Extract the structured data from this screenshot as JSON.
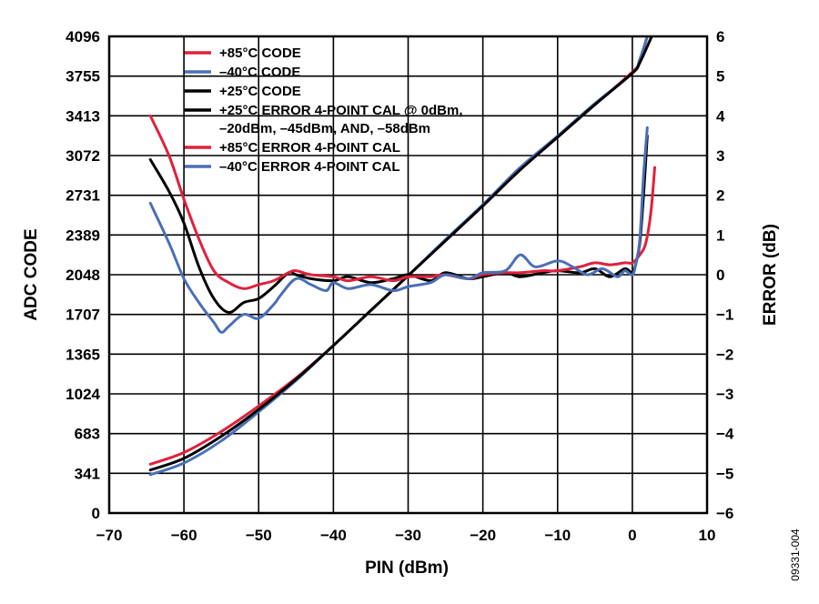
{
  "figure_id": "09331-004",
  "chart_data": {
    "type": "line",
    "title": "",
    "xlabel": "PIN (dBm)",
    "ylabel_left": "ADC CODE",
    "ylabel_right": "ERROR (dB)",
    "xlim": [
      -70,
      10
    ],
    "ylim_left": [
      0,
      4096
    ],
    "ylim_right": [
      -6,
      6
    ],
    "x_ticks": [
      "−70",
      "−60",
      "−50",
      "−40",
      "−30",
      "−20",
      "−10",
      "0",
      "10"
    ],
    "y_ticks_left": [
      "0",
      "341",
      "683",
      "1024",
      "1365",
      "1707",
      "2048",
      "2389",
      "2731",
      "3072",
      "3413",
      "3755",
      "4096"
    ],
    "y_ticks_right": [
      "−6",
      "−5",
      "−4",
      "−3",
      "−2",
      "−1",
      "0",
      "1",
      "2",
      "3",
      "4",
      "5",
      "6"
    ],
    "grid": true,
    "legend_position": "top-left",
    "legend": [
      {
        "label": "+85°C CODE",
        "color": "#e0203c"
      },
      {
        "label": "–40°C CODE",
        "color": "#4a6fb5"
      },
      {
        "label": "+25°C CODE",
        "color": "#000000"
      },
      {
        "label": "+25°C ERROR 4-POINT CAL @ 0dBm,",
        "label2": "–20dBm, –45dBm, AND, –58dBm",
        "color": "#000000"
      },
      {
        "label": "+85°C ERROR 4-POINT CAL",
        "color": "#e0203c"
      },
      {
        "label": "–40°C ERROR 4-POINT CAL",
        "color": "#4a6fb5"
      }
    ],
    "series": [
      {
        "name": "+85°C CODE",
        "axis": "left",
        "color": "#e0203c",
        "x": [
          -64.5,
          -60,
          -55,
          -50,
          -45,
          -40,
          -35,
          -30,
          -25,
          -20,
          -15,
          -10,
          -5,
          0,
          1,
          2
        ],
        "y": [
          420,
          520,
          700,
          920,
          1160,
          1440,
          1740,
          2040,
          2340,
          2640,
          2950,
          3230,
          3510,
          3790,
          3880,
          4096
        ]
      },
      {
        "name": "–40°C CODE",
        "axis": "left",
        "color": "#4a6fb5",
        "x": [
          -64.5,
          -60,
          -55,
          -50,
          -45,
          -40,
          -35,
          -30,
          -25,
          -20,
          -15,
          -10,
          -5,
          0,
          1,
          2
        ],
        "y": [
          330,
          430,
          620,
          870,
          1140,
          1440,
          1740,
          2040,
          2350,
          2650,
          2970,
          3240,
          3520,
          3780,
          3900,
          4096
        ]
      },
      {
        "name": "+25°C CODE",
        "axis": "left",
        "color": "#000000",
        "x": [
          -64.5,
          -60,
          -55,
          -50,
          -45,
          -40,
          -35,
          -30,
          -25,
          -20,
          -15,
          -10,
          -5,
          0,
          1,
          2.6
        ],
        "y": [
          370,
          470,
          660,
          890,
          1150,
          1440,
          1740,
          2040,
          2340,
          2640,
          2950,
          3230,
          3510,
          3780,
          3870,
          4096
        ]
      },
      {
        "name": "+25°C ERROR 4-POINT CAL @ 0dBm, –20dBm, –45dBm, AND, –58dBm",
        "axis": "right",
        "color": "#000000",
        "x": [
          -64.5,
          -62,
          -60,
          -58,
          -56,
          -54,
          -52,
          -50,
          -48,
          -46,
          -45,
          -43,
          -40,
          -38,
          -35,
          -32,
          -30,
          -27,
          -25,
          -22,
          -20,
          -17,
          -15,
          -12,
          -10,
          -7,
          -5,
          -3,
          -1,
          0,
          0.5,
          1,
          1.5,
          2
        ],
        "y": [
          2.9,
          2.1,
          1.3,
          0.2,
          -0.6,
          -0.95,
          -0.7,
          -0.6,
          -0.3,
          0.05,
          0.0,
          -0.1,
          -0.15,
          -0.05,
          -0.2,
          -0.1,
          0.0,
          -0.15,
          0.05,
          -0.1,
          -0.05,
          0.05,
          -0.05,
          0.05,
          0.1,
          0.05,
          0.15,
          -0.05,
          0.15,
          0.05,
          0.3,
          0.8,
          2.0,
          3.5
        ]
      },
      {
        "name": "+85°C ERROR 4-POINT CAL",
        "axis": "right",
        "color": "#e0203c",
        "x": [
          -64.5,
          -62,
          -60,
          -58,
          -56,
          -54,
          -52,
          -50,
          -48,
          -46,
          -45,
          -43,
          -40,
          -38,
          -35,
          -32,
          -30,
          -27,
          -25,
          -22,
          -20,
          -17,
          -15,
          -12,
          -10,
          -7,
          -5,
          -3,
          -1,
          0,
          1,
          1.8,
          2.5,
          3
        ],
        "y": [
          4.0,
          3.0,
          1.9,
          0.9,
          0.1,
          -0.2,
          -0.35,
          -0.25,
          -0.15,
          0.05,
          0.1,
          0.0,
          -0.05,
          -0.15,
          -0.05,
          -0.15,
          -0.05,
          -0.05,
          0.0,
          -0.1,
          0.0,
          0.05,
          0.05,
          0.1,
          0.1,
          0.2,
          0.3,
          0.25,
          0.3,
          0.3,
          0.5,
          0.8,
          1.6,
          2.7
        ]
      },
      {
        "name": "–40°C ERROR 4-POINT CAL",
        "axis": "right",
        "color": "#4a6fb5",
        "x": [
          -64.5,
          -62,
          -60,
          -58,
          -56,
          -55,
          -54,
          -52,
          -50,
          -48,
          -47,
          -45,
          -43,
          -41,
          -40,
          -38,
          -35,
          -32,
          -30,
          -27,
          -25,
          -22,
          -20,
          -17,
          -15,
          -13,
          -10,
          -8,
          -6,
          -4,
          -2,
          -1,
          0,
          0.5,
          1,
          1.5,
          2
        ],
        "y": [
          1.8,
          0.8,
          -0.1,
          -0.7,
          -1.2,
          -1.45,
          -1.3,
          -1.0,
          -1.1,
          -0.75,
          -0.5,
          -0.1,
          -0.25,
          -0.4,
          -0.2,
          -0.35,
          -0.25,
          -0.4,
          -0.3,
          -0.2,
          0.0,
          -0.1,
          0.05,
          0.1,
          0.5,
          0.2,
          0.35,
          0.2,
          0.0,
          0.15,
          -0.05,
          0.1,
          0.0,
          0.3,
          0.9,
          2.5,
          3.7
        ]
      }
    ]
  }
}
